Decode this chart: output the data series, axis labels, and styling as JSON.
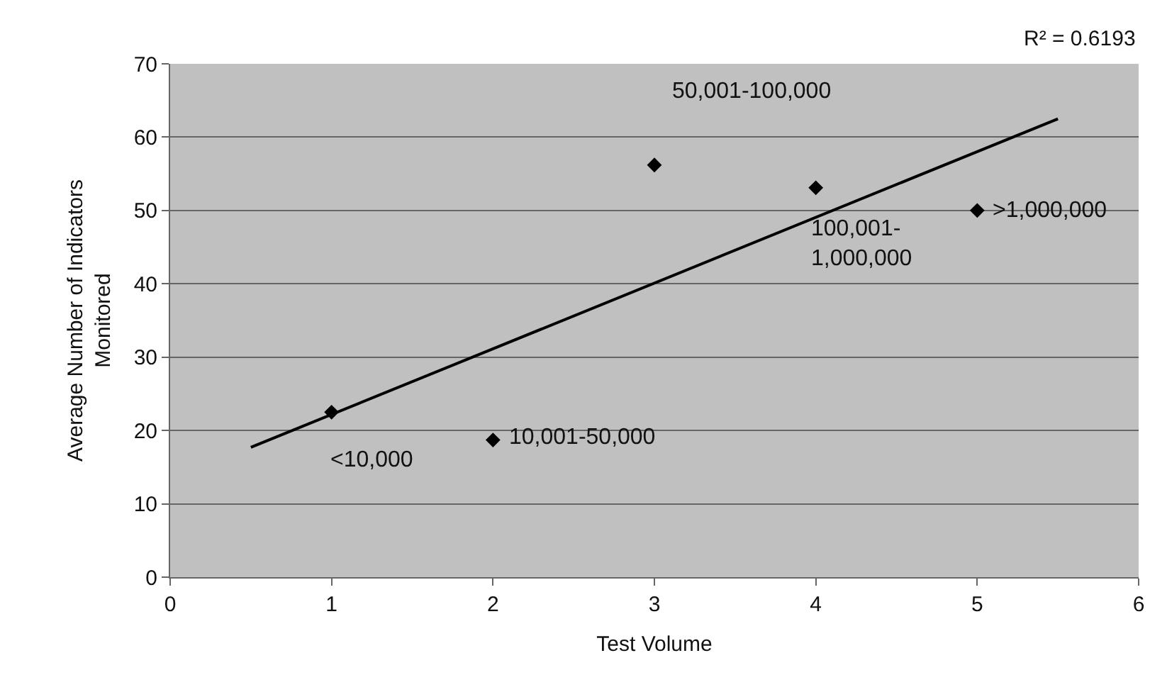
{
  "chart_data": {
    "type": "scatter",
    "xlabel": "Test Volume",
    "ylabel": "Average Number of Indicators Monitored",
    "x": [
      1,
      2,
      3,
      4,
      5
    ],
    "series": [
      {
        "color": "#000000",
        "marker": "diamond",
        "values": [
          22.5,
          18.7,
          56.2,
          53.1,
          50.0
        ]
      },
      {
        "type": "line",
        "color": "#000000",
        "x": [
          0.5,
          5.5
        ],
        "values": [
          17.7,
          62.5
        ]
      }
    ],
    "xlim": [
      0,
      6
    ],
    "xticks": [
      0,
      1,
      2,
      3,
      4,
      5,
      6
    ],
    "ylim": [
      0,
      70
    ],
    "yticks": [
      0,
      10,
      20,
      30,
      40,
      50,
      60,
      70
    ],
    "grid": "y",
    "annotations": [
      {
        "text": "<10,000",
        "x": 1,
        "y": 22.5
      },
      {
        "text": "10,001-50,000",
        "x": 2,
        "y": 18.7
      },
      {
        "text": "50,001-100,000",
        "x": 3,
        "y": 56.2
      },
      {
        "text": "100,001-\n1,000,000",
        "x": 4,
        "y": 53.1
      },
      {
        "text": ">1,000,000",
        "x": 5,
        "y": 50.0
      },
      "R² = 0.6193"
    ]
  }
}
